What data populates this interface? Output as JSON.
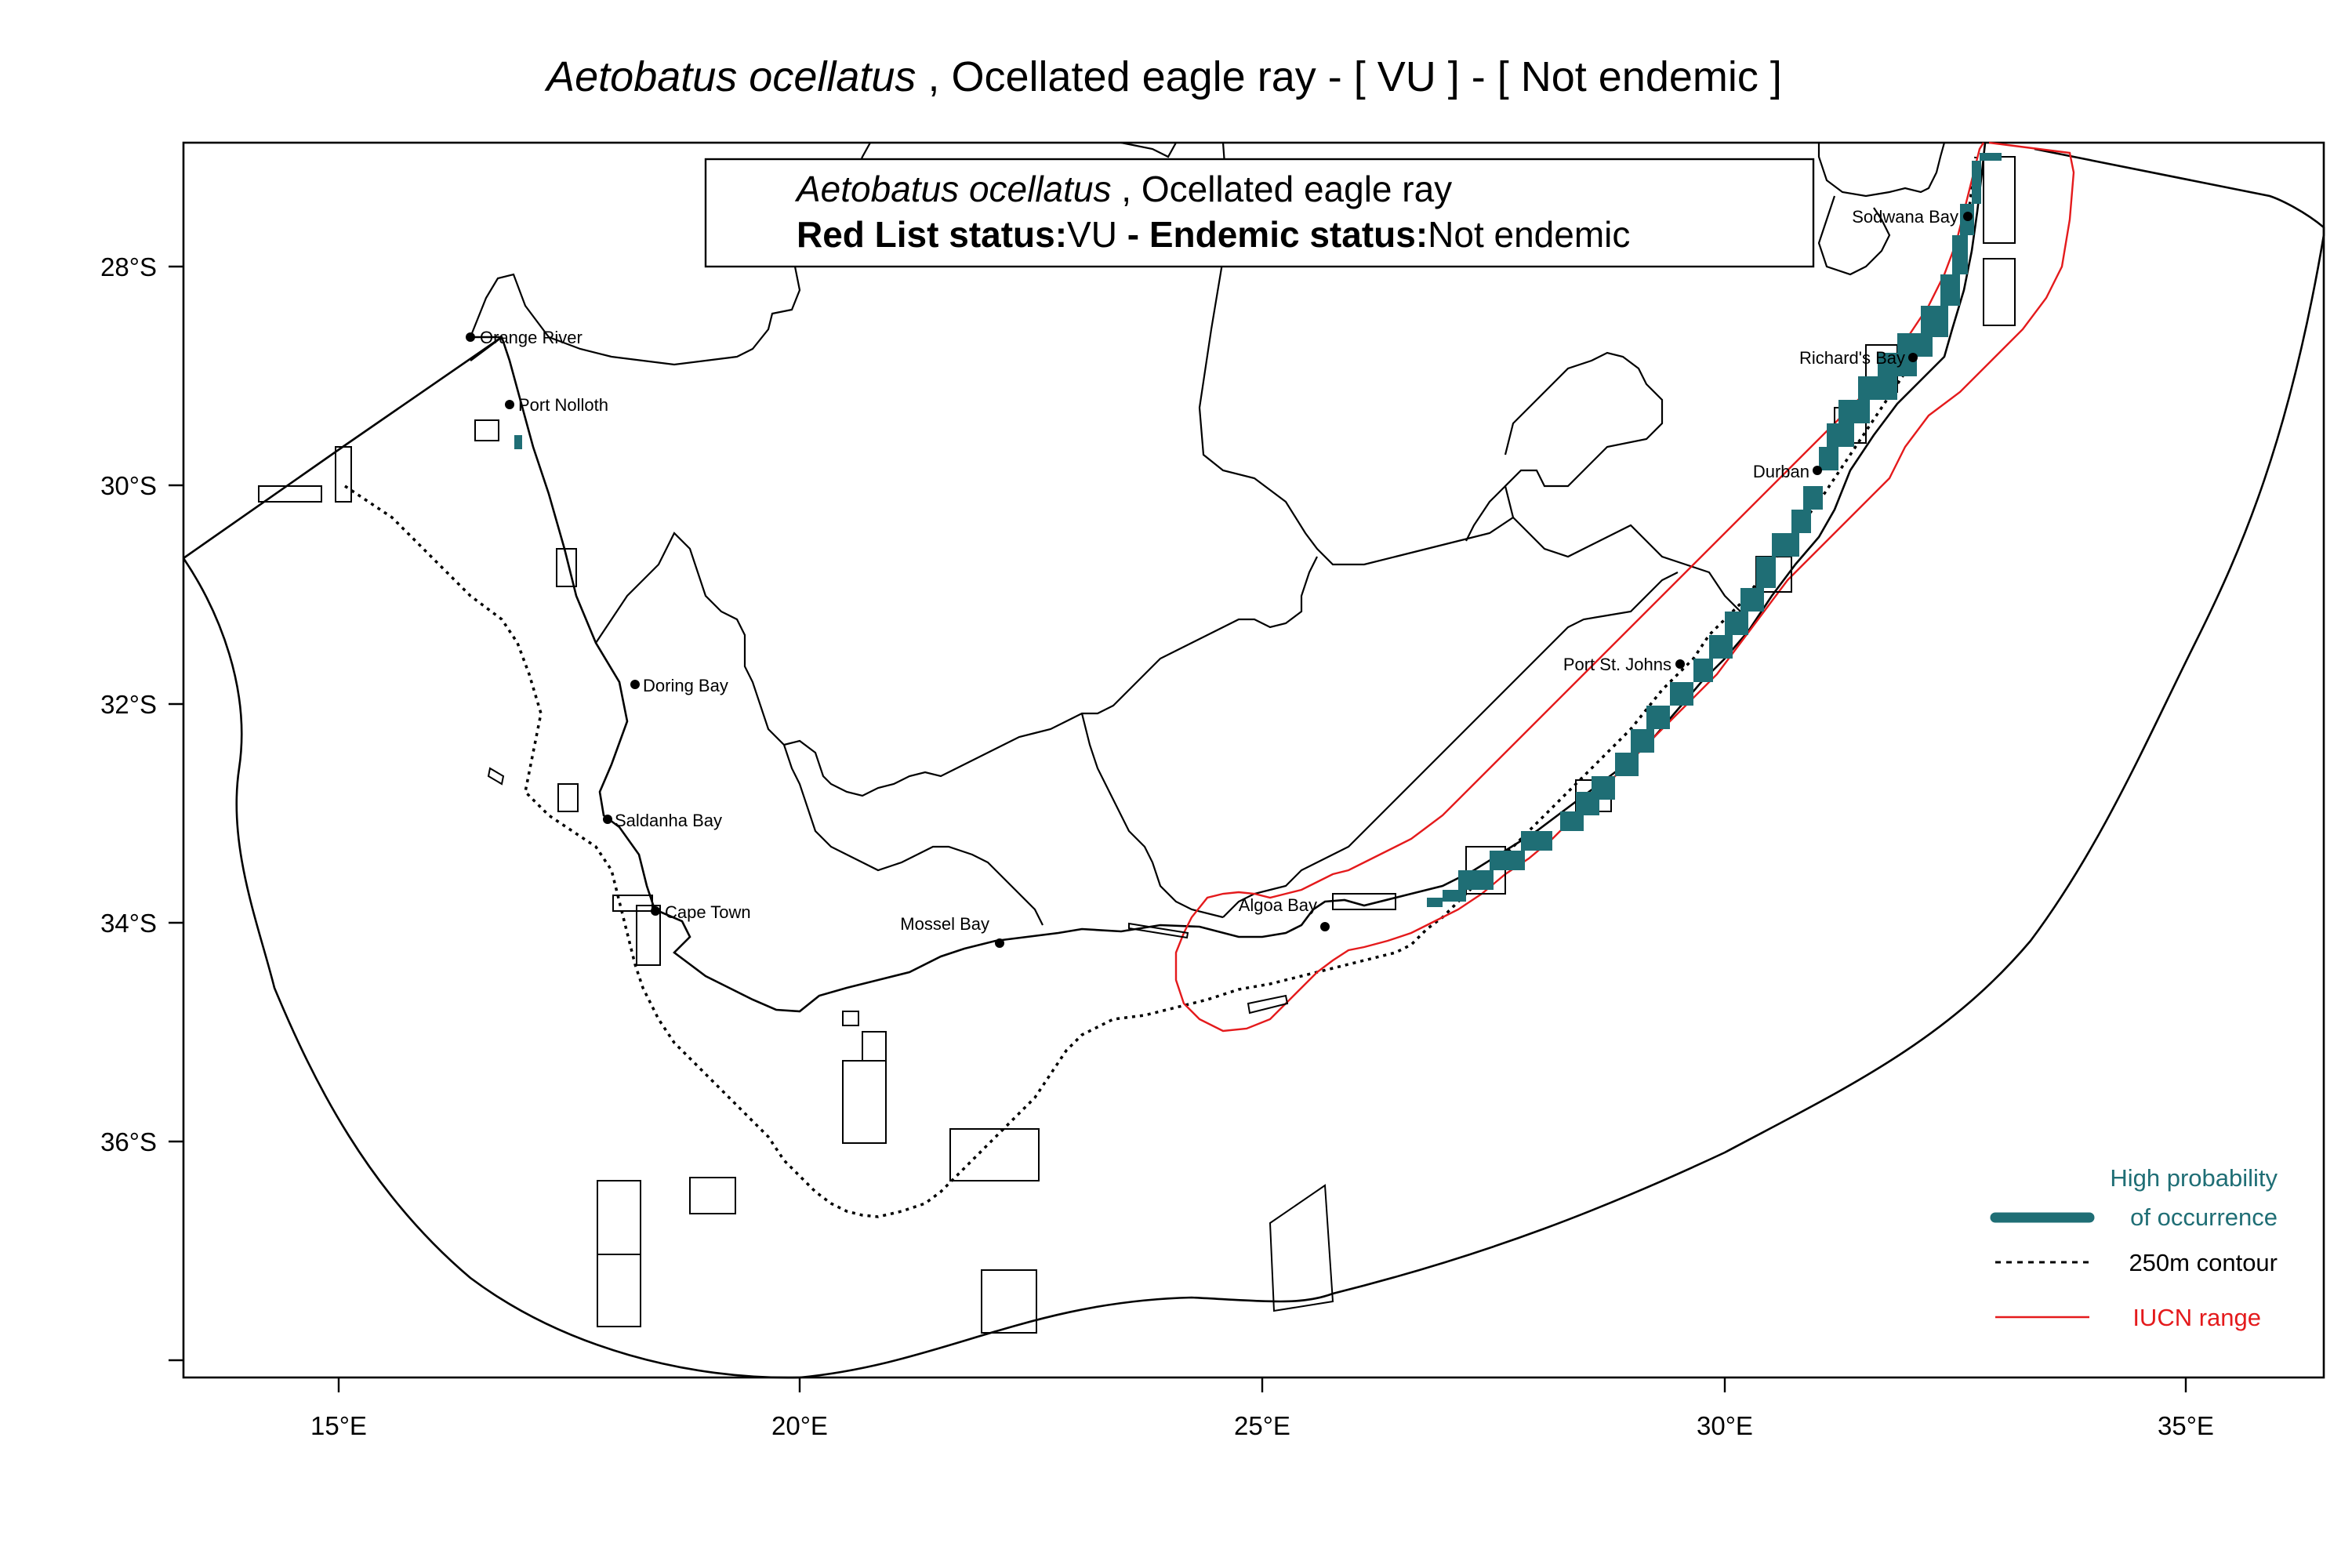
{
  "title": {
    "species": "Aetobatus ocellatus",
    "rest": " , Ocellated eagle ray  - [ VU ] - [ Not endemic ]"
  },
  "info_box": {
    "species": "Aetobatus ocellatus",
    "common_name": " , Ocellated eagle ray",
    "redlist_label": "Red List status:",
    "redlist_value": "VU",
    "endemic_label": " - Endemic status:",
    "endemic_value": "Not endemic"
  },
  "axes": {
    "x_ticks": [
      "15°E",
      "20°E",
      "25°E",
      "30°E",
      "35°E"
    ],
    "y_ticks": [
      "28°S",
      "30°S",
      "32°S",
      "34°S",
      "36°S"
    ]
  },
  "places": [
    {
      "name": "Orange River"
    },
    {
      "name": "Port Nolloth"
    },
    {
      "name": "Doring Bay"
    },
    {
      "name": "Saldanha Bay"
    },
    {
      "name": "Cape Town"
    },
    {
      "name": "Mossel Bay"
    },
    {
      "name": "Algoa Bay"
    },
    {
      "name": "Port St. Johns"
    },
    {
      "name": "Durban"
    },
    {
      "name": "Richard's Bay"
    },
    {
      "name": "Sodwana Bay"
    }
  ],
  "legend": {
    "occurrence_line1": "High probability",
    "occurrence_line2": "of occurrence",
    "contour": "250m contour",
    "iucn": "IUCN range"
  },
  "colors": {
    "occurrence": "#1f6e75",
    "iucn": "#e41a1c",
    "lines": "#000000"
  }
}
